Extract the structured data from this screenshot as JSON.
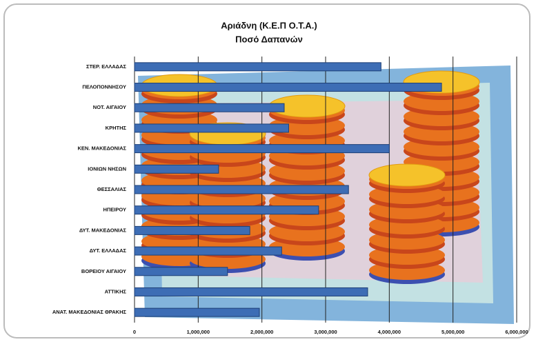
{
  "chart_data": {
    "type": "hbar",
    "title": "Αριάδνη (Κ.Ε.Π Ο.Τ.Α.)",
    "subtitle": "Ποσό Δαπανών",
    "categories": [
      "ΣΤΕΡ. ΕΛΛΑΔΑΣ",
      "ΠΕΛΟΠΟΝΝΗΣΟΥ",
      "ΝΟΤ. ΑΙΓΑΙΟΥ",
      "ΚΡΗΤΗΣ",
      "ΚΕΝ. ΜΑΚΕΔΟΝΙΑΣ",
      "ΙΟΝΙΩΝ ΝΗΣΩΝ",
      "ΘΕΣΣΑΛΙΑΣ",
      "ΗΠΕΙΡΟΥ",
      "ΔΥΤ. ΜΑΚΕΔΟΝΙΑΣ",
      "ΔΥΤ. ΕΛΛΑΔΑΣ",
      "ΒΟΡΕΙΟΥ ΑΙΓΑΙΟΥ",
      "ΑΤΤΙΚΗΣ",
      "ΑΝΑΤ. ΜΑΚΕΔΟΝΙΑΣ ΘΡΑΚΗΣ"
    ],
    "values": [
      3870000,
      4820000,
      2350000,
      2420000,
      4000000,
      1320000,
      3360000,
      2890000,
      1810000,
      2310000,
      1460000,
      3660000,
      1960000
    ],
    "color": "#3d6db5",
    "xlim": [
      0,
      6000000
    ],
    "xticks": [
      0,
      {
        "value": 1000000,
        "label": "1,000,000"
      },
      {
        "value": 2000000,
        "label": "2,000,000"
      },
      {
        "value": 3000000,
        "label": "3,000,000"
      },
      {
        "value": 4000000,
        "label": "4,000,000"
      },
      {
        "value": 5000000,
        "label": "5,000,000"
      },
      {
        "value": 6000000,
        "label": "6,000,000"
      }
    ],
    "grid": true
  }
}
